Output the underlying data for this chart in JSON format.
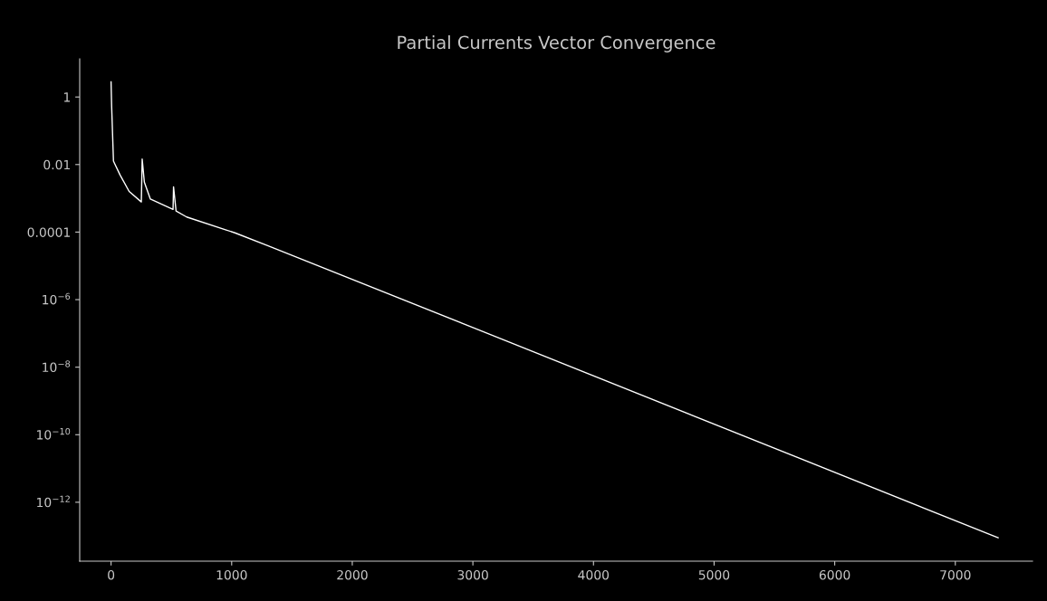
{
  "chart_data": {
    "type": "line",
    "title": "Partial Currents Vector Convergence",
    "x": [
      0,
      5,
      15,
      20,
      75,
      150,
      251,
      258,
      276,
      326,
      514,
      518,
      539,
      627,
      1027,
      1303,
      3000,
      7355
    ],
    "series": [
      {
        "color": "#ffffff",
        "values": [
          2.8,
          0.51,
          0.043,
          0.0126,
          0.0049,
          0.0016,
          0.00078,
          0.0145,
          0.003,
          0.00095,
          0.00047,
          0.0022,
          0.00042,
          0.00028,
          9.5e-05,
          3.9e-05,
          1.5e-07,
          8.9e-14
        ]
      }
    ],
    "log": "y",
    "xlim": [
      -260,
      7640
    ],
    "ylim": [
      1.8e-14,
      13.5
    ],
    "xticks": [
      0,
      1000,
      2000,
      3000,
      4000,
      5000,
      6000,
      7000
    ],
    "yticks": [
      1,
      0.01,
      0.0001,
      {
        "value": 1e-06,
        "label": "10$^{−6}$"
      },
      {
        "value": 1e-08,
        "label": "10$^{−8}$"
      },
      {
        "value": 1e-10,
        "label": "10$^{−10}$"
      },
      {
        "value": 1e-12,
        "label": "10$^{−12}$"
      }
    ],
    "grid": false,
    "legend": false
  }
}
